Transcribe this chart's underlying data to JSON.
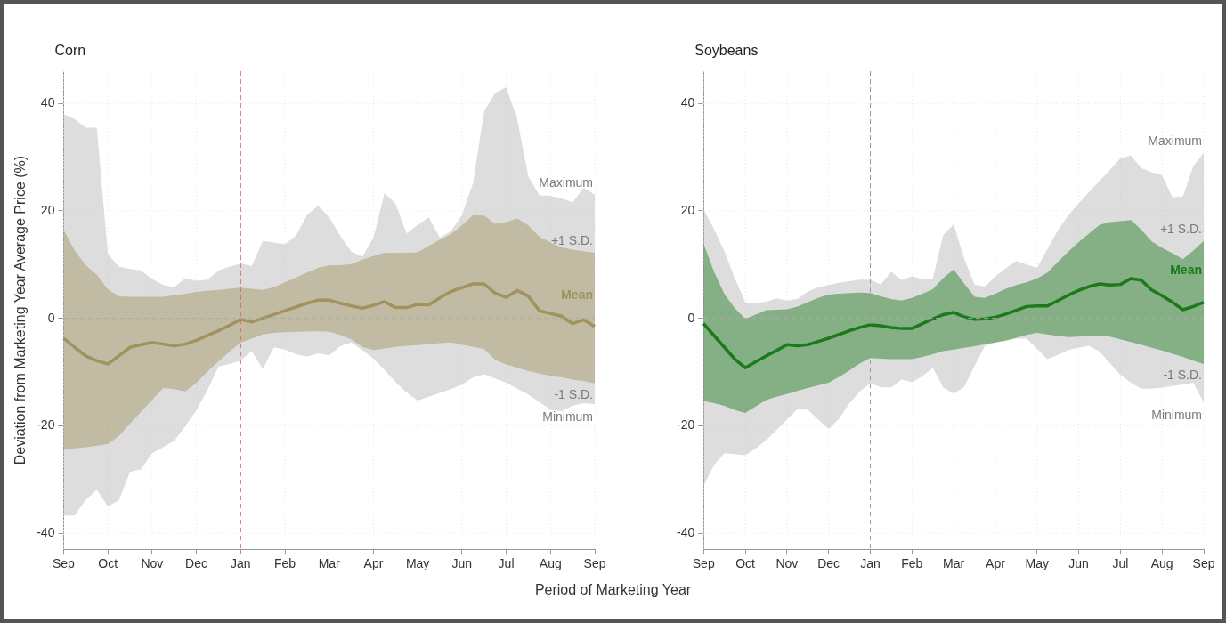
{
  "chart_data": [
    {
      "type": "line",
      "title": "Corn",
      "ylabel": "Deviation from Marketing Year Average Price (%)",
      "xlabel": "Period of Marketing Year",
      "ylim": [
        -43,
        46
      ],
      "categories": [
        "Sep",
        null,
        null,
        null,
        "Oct",
        null,
        null,
        null,
        "Nov",
        null,
        null,
        null,
        "Dec",
        null,
        null,
        null,
        "Jan",
        null,
        null,
        null,
        "Feb",
        null,
        null,
        null,
        "Mar",
        null,
        null,
        null,
        "Apr",
        null,
        null,
        null,
        "May",
        null,
        null,
        null,
        "Jun",
        null,
        null,
        null,
        "Jul",
        null,
        null,
        null,
        "Aug",
        null,
        null,
        null,
        "Sep"
      ],
      "yticks": [
        -40,
        -20,
        0,
        20,
        40
      ],
      "grid": true,
      "legend": false,
      "ref_lines": [
        {
          "axis": "x",
          "value": "Jan",
          "color": "#e06060",
          "line_style": "dashed"
        },
        {
          "axis": "y",
          "value": 0,
          "color": "#aaaaaa",
          "line_style": "dashed"
        }
      ],
      "annotations": [
        "Maximum",
        "+1 S.D.",
        "-1 S.D.",
        "Minimum"
      ],
      "series": [
        {
          "color": "#b4b4b4",
          "values": [
            null,
            null,
            null,
            null,
            null,
            null,
            null,
            null,
            null,
            null,
            null,
            null,
            null,
            null,
            null,
            null,
            null,
            null,
            null,
            null,
            null,
            null,
            null,
            null,
            null,
            null,
            null,
            null,
            null,
            null,
            null,
            null,
            null,
            null,
            null,
            null,
            null,
            null,
            null,
            null,
            null,
            null,
            null,
            null,
            null,
            null,
            null,
            null,
            null
          ],
          "upper": [
            38,
            37.1,
            35.5,
            35.5,
            12,
            9.6,
            9.2,
            8.9,
            7.3,
            6.2,
            5.8,
            7.5,
            7,
            7.2,
            8.9,
            9.6,
            10.2,
            9.7,
            14.4,
            14.1,
            13.8,
            15.4,
            19.2,
            21,
            18.8,
            15.4,
            12.4,
            11.5,
            15,
            23.3,
            21.3,
            15.8,
            17.4,
            18.8,
            15,
            16.2,
            19.2,
            25.2,
            38.5,
            42,
            43,
            37,
            26.4,
            22.9,
            22.8,
            22.3,
            21.6,
            24.3,
            23
          ],
          "lower": [
            -36.7,
            -36.7,
            -33.8,
            -31.9,
            -35,
            -33.9,
            -28.6,
            -28.1,
            -25.1,
            -24,
            -22.8,
            -20.1,
            -17.1,
            -13.4,
            -9,
            -8.5,
            -7.9,
            -6.1,
            -9.4,
            -5.4,
            -5.8,
            -6.7,
            -7.1,
            -6.5,
            -6.9,
            -5.2,
            -4.5,
            -5.9,
            -7.5,
            -9.6,
            -11.9,
            -13.8,
            -15.3,
            -14.6,
            -13.9,
            -13.2,
            -12.3,
            -11,
            -10.4,
            -11.2,
            -12,
            -13.1,
            -14.2,
            -15.6,
            -17,
            -17.3,
            -16.3,
            -15.8,
            -16
          ]
        },
        {
          "name": "Mean",
          "color": "#a0935d",
          "values": [
            -3.7,
            -5.4,
            -7,
            -7.9,
            -8.5,
            -7,
            -5.4,
            -4.9,
            -4.5,
            -4.8,
            -5.1,
            -4.8,
            -4.1,
            -3.2,
            -2.3,
            -1.3,
            -0.2,
            -0.7,
            0,
            0.7,
            1.4,
            2.1,
            2.8,
            3.4,
            3.4,
            2.8,
            2.3,
            1.9,
            2.4,
            3.1,
            2,
            2,
            2.6,
            2.5,
            3.8,
            5,
            5.7,
            6.4,
            6.4,
            4.7,
            3.9,
            5.2,
            4.1,
            1.4,
            0.9,
            0.4,
            -1,
            -0.3,
            -1.5
          ],
          "upper": [
            16.5,
            12.6,
            9.9,
            8.1,
            5.4,
            4.1,
            4,
            4,
            4,
            4,
            4.3,
            4.6,
            4.9,
            5.1,
            5.3,
            5.5,
            5.7,
            5.5,
            5.3,
            5.8,
            6.7,
            7.6,
            8.5,
            9.4,
            9.9,
            9.9,
            10.1,
            10.9,
            11.6,
            12.2,
            12.2,
            12.2,
            12.3,
            13.5,
            14.6,
            15.7,
            17.3,
            19.2,
            19.1,
            17.6,
            17.9,
            18.6,
            17.3,
            15.2,
            14.1,
            13.2,
            12.8,
            12.5,
            12.2
          ],
          "lower": [
            -24.5,
            -24.2,
            -24,
            -23.7,
            -23.4,
            -21.9,
            -19.6,
            -17.4,
            -15.2,
            -13,
            -13.2,
            -13.6,
            -12,
            -9.9,
            -8,
            -6.2,
            -4.5,
            -3.8,
            -3,
            -2.7,
            -2.6,
            -2.5,
            -2.4,
            -2.4,
            -2.5,
            -3.1,
            -3.9,
            -5.3,
            -5.9,
            -5.6,
            -5.3,
            -5.1,
            -5,
            -4.8,
            -4.6,
            -4.5,
            -4.9,
            -5.3,
            -5.7,
            -7.7,
            -8.6,
            -9.2,
            -9.8,
            -10.3,
            -10.7,
            -11,
            -11.4,
            -11.7,
            -12.1
          ]
        }
      ]
    },
    {
      "type": "line",
      "title": "Soybeans",
      "ylim": [
        -43,
        46
      ],
      "categories": [
        "Sep",
        null,
        null,
        null,
        "Oct",
        null,
        null,
        null,
        "Nov",
        null,
        null,
        null,
        "Dec",
        null,
        null,
        null,
        "Jan",
        null,
        null,
        null,
        "Feb",
        null,
        null,
        null,
        "Mar",
        null,
        null,
        null,
        "Apr",
        null,
        null,
        null,
        "May",
        null,
        null,
        null,
        "Jun",
        null,
        null,
        null,
        "Jul",
        null,
        null,
        null,
        "Aug",
        null,
        null,
        null,
        "Sep"
      ],
      "yticks": [
        -40,
        -20,
        0,
        20,
        40
      ],
      "grid": true,
      "legend": false,
      "ref_lines": [
        {
          "axis": "x",
          "value": "Jan",
          "color": "#999999",
          "line_style": "dashed"
        },
        {
          "axis": "y",
          "value": 0,
          "color": "#aaaaaa",
          "line_style": "dashed"
        }
      ],
      "annotations": [
        "Maximum",
        "+1 S.D.",
        "-1 S.D.",
        "Minimum"
      ],
      "series": [
        {
          "color": "#b4b4b4",
          "values": [
            null,
            null,
            null,
            null,
            null,
            null,
            null,
            null,
            null,
            null,
            null,
            null,
            null,
            null,
            null,
            null,
            null,
            null,
            null,
            null,
            null,
            null,
            null,
            null,
            null,
            null,
            null,
            null,
            null,
            null,
            null,
            null,
            null,
            null,
            null,
            null,
            null,
            null,
            null,
            null,
            null,
            null,
            null,
            null,
            null,
            null,
            null,
            null,
            null
          ],
          "upper": [
            20.3,
            16.6,
            12.5,
            7.4,
            3,
            2.8,
            3.1,
            3.7,
            3.3,
            3.6,
            5,
            5.8,
            6.2,
            6.6,
            6.9,
            7.2,
            7.2,
            6.3,
            8.7,
            7.1,
            7.8,
            7.3,
            7.4,
            15.5,
            17.5,
            11.2,
            6.3,
            5.9,
            7.8,
            9.3,
            10.7,
            10,
            9.4,
            12.9,
            16.4,
            19.2,
            21.4,
            23.5,
            25.6,
            27.6,
            29.8,
            30.3,
            28,
            27.2,
            26.6,
            22.5,
            22.7,
            28.3,
            30.8
          ],
          "lower": [
            -31.2,
            -27.3,
            -25.1,
            -25.3,
            -25.5,
            -24.2,
            -22.7,
            -20.8,
            -18.8,
            -16.9,
            -17,
            -18.8,
            -20.6,
            -18.7,
            -15.8,
            -13.6,
            -12.1,
            -12.8,
            -12.9,
            -11.4,
            -11.9,
            -10.8,
            -9.2,
            -12.9,
            -14,
            -12.8,
            -8.9,
            -5.1,
            -4.5,
            -4.2,
            -3.8,
            -3.8,
            -5.7,
            -7.6,
            -6.8,
            -5.9,
            -5.5,
            -5.1,
            -6.2,
            -8.4,
            -10.5,
            -12,
            -13.1,
            -13.1,
            -12.9,
            -12.6,
            -12.3,
            -12,
            -15.7
          ]
        },
        {
          "name": "Mean",
          "color": "#1b7a1b",
          "values": [
            -1,
            -3.2,
            -5.4,
            -7.6,
            -9.2,
            -8.1,
            -7,
            -6,
            -4.9,
            -5.1,
            -4.9,
            -4.3,
            -3.7,
            -3,
            -2.3,
            -1.7,
            -1.2,
            -1.4,
            -1.7,
            -1.9,
            -1.9,
            -1,
            -0.1,
            0.7,
            1.1,
            0.3,
            -0.2,
            -0.1,
            0.2,
            0.8,
            1.5,
            2.2,
            2.3,
            2.3,
            3.3,
            4.3,
            5.2,
            5.9,
            6.4,
            6.2,
            6.3,
            7.4,
            7.1,
            5.3,
            4.2,
            3,
            1.6,
            2.2,
            3
          ],
          "upper": [
            13.9,
            8.7,
            4.5,
            1.9,
            -0.1,
            0.7,
            1.5,
            1.6,
            1.7,
            2.2,
            3,
            3.8,
            4.4,
            4.6,
            4.7,
            4.8,
            4.7,
            4.1,
            3.6,
            3.3,
            3.8,
            4.6,
            5.4,
            7.5,
            9.1,
            6.5,
            4,
            3.8,
            4.6,
            5.5,
            6.2,
            6.7,
            7.4,
            8.5,
            10.5,
            12.4,
            14.2,
            15.8,
            17.4,
            17.9,
            18.1,
            18.3,
            16.5,
            14.3,
            13.1,
            12.1,
            11,
            12.6,
            14.4
          ],
          "lower": [
            -15.4,
            -15.8,
            -16.3,
            -17.1,
            -17.6,
            -16.4,
            -15.2,
            -14.6,
            -14.1,
            -13.5,
            -13,
            -12.5,
            -12,
            -10.9,
            -9.7,
            -8.4,
            -7.4,
            -7.5,
            -7.6,
            -7.6,
            -7.6,
            -7.2,
            -6.7,
            -6.1,
            -5.8,
            -5.5,
            -5.2,
            -4.8,
            -4.5,
            -4.1,
            -3.6,
            -3.1,
            -2.7,
            -3,
            -3.3,
            -3.5,
            -3.4,
            -3.3,
            -3.2,
            -3.4,
            -3.9,
            -4.4,
            -4.9,
            -5.5,
            -6,
            -6.6,
            -7.2,
            -7.9,
            -8.5
          ]
        }
      ]
    }
  ]
}
